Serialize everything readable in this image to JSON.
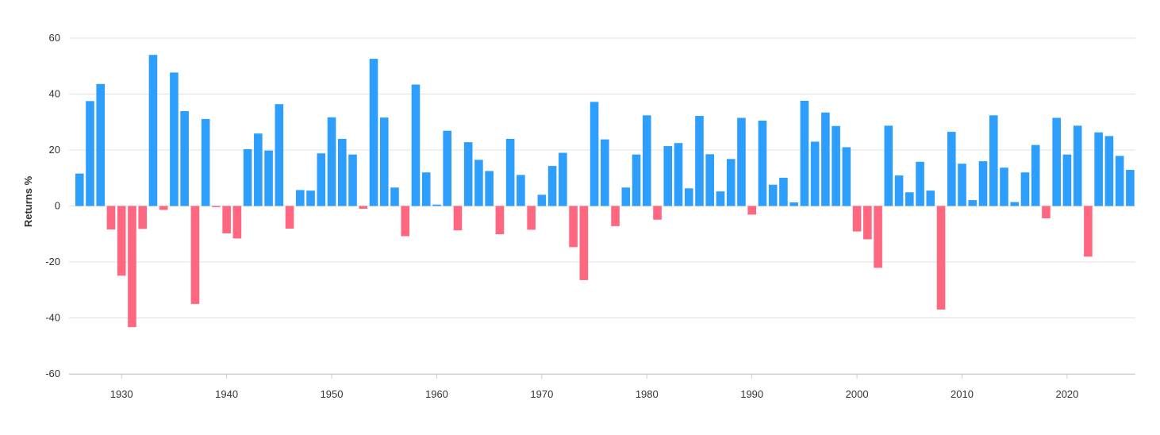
{
  "chart_data": {
    "type": "bar",
    "ylabel": "Returns %",
    "xlabel": "",
    "ylim": [
      -60,
      60
    ],
    "yticks": [
      60,
      40,
      20,
      0,
      -20,
      -40,
      -60
    ],
    "xticks": [
      1930,
      1940,
      1950,
      1960,
      1970,
      1980,
      1990,
      2000,
      2010,
      2020
    ],
    "x_range": [
      1925,
      2026.5
    ],
    "grid": true,
    "legend": "none",
    "colors": {
      "positive": "#2e9efc",
      "negative": "#ff6680",
      "grid": "#e0e0e0",
      "axis": "#cccccc",
      "text": "#333333"
    },
    "series": [
      {
        "x": [
          1926,
          1927,
          1928,
          1929,
          1930,
          1931,
          1932,
          1933,
          1934,
          1935,
          1936,
          1937,
          1938,
          1939,
          1940,
          1941,
          1942,
          1943,
          1944,
          1945,
          1946,
          1947,
          1948,
          1949,
          1950,
          1951,
          1952,
          1953,
          1954,
          1955,
          1956,
          1957,
          1958,
          1959,
          1960,
          1961,
          1962,
          1963,
          1964,
          1965,
          1966,
          1967,
          1968,
          1969,
          1970,
          1971,
          1972,
          1973,
          1974,
          1975,
          1976,
          1977,
          1978,
          1979,
          1980,
          1981,
          1982,
          1983,
          1984,
          1985,
          1986,
          1987,
          1988,
          1989,
          1990,
          1991,
          1992,
          1993,
          1994,
          1995,
          1996,
          1997,
          1998,
          1999,
          2000,
          2001,
          2002,
          2003,
          2004,
          2005,
          2006,
          2007,
          2008,
          2009,
          2010,
          2011,
          2012,
          2013,
          2014,
          2015,
          2016,
          2017,
          2018,
          2019,
          2020,
          2021,
          2022,
          2023,
          2024,
          2025,
          2026
        ],
        "values": [
          11.6,
          37.5,
          43.6,
          -8.4,
          -24.9,
          -43.3,
          -8.2,
          54.0,
          -1.4,
          47.7,
          33.9,
          -35.0,
          31.1,
          -0.4,
          -9.8,
          -11.6,
          20.3,
          25.9,
          19.8,
          36.4,
          -8.1,
          5.7,
          5.5,
          18.8,
          31.7,
          24.0,
          18.4,
          -1.0,
          52.6,
          31.6,
          6.6,
          -10.8,
          43.4,
          12.0,
          0.5,
          26.9,
          -8.7,
          22.8,
          16.5,
          12.5,
          -10.1,
          24.0,
          11.1,
          -8.5,
          4.0,
          14.3,
          19.0,
          -14.7,
          -26.5,
          37.2,
          23.8,
          -7.2,
          6.6,
          18.4,
          32.4,
          -4.9,
          21.4,
          22.5,
          6.3,
          32.2,
          18.5,
          5.2,
          16.8,
          31.5,
          -3.1,
          30.5,
          7.6,
          10.1,
          1.3,
          37.6,
          23.0,
          33.4,
          28.6,
          21.0,
          -9.1,
          -11.9,
          -22.1,
          28.7,
          10.9,
          4.9,
          15.8,
          5.5,
          -37.0,
          26.5,
          15.1,
          2.1,
          16.0,
          32.4,
          13.7,
          1.4,
          12.0,
          21.8,
          -4.4,
          31.5,
          18.4,
          28.7,
          -18.1,
          26.3,
          25.0,
          17.9,
          12.9
        ]
      }
    ]
  }
}
